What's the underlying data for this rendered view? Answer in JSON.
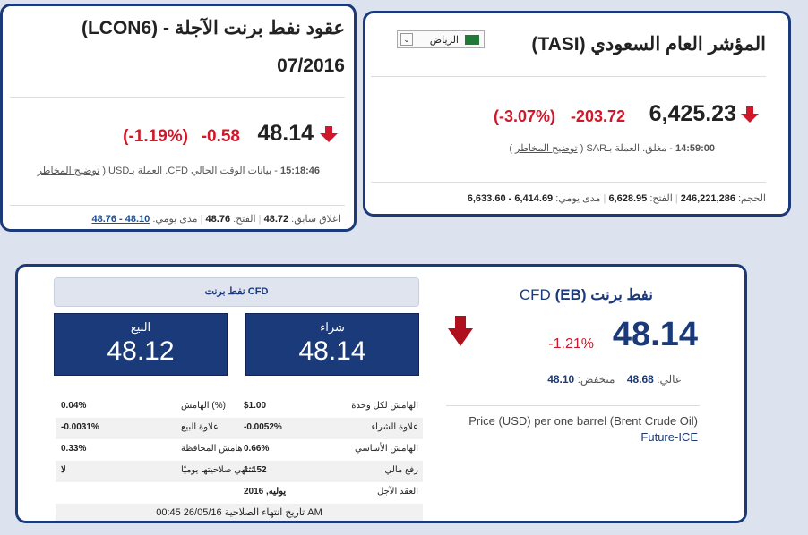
{
  "left": {
    "title_line1": "عقود نفط برنت الآجلة  -  (LCON6)",
    "title_line2": "07/2016",
    "price": "48.14",
    "change": "-0.58",
    "change_pct": "(-1.19%)",
    "time": "15:18:46",
    "status_text": "- بيانات الوقت الحالي CFD. العملة بـUSD (",
    "risk_link": "توضيح المخاطر",
    "prev_close_label": "اغلاق سابق:",
    "prev_close": "48.72",
    "open_label": "الفتح:",
    "open": "48.76",
    "day_range_label": "مدى يومي:",
    "day_range": "48.10 - 48.76"
  },
  "right": {
    "title": "المؤشر العام السعودي (TASI)",
    "city_select": "الرياض",
    "price": "6,425.23",
    "change": "-203.72",
    "change_pct": "(-3.07%)",
    "time": "14:59:00",
    "status_text": "- مغلق. العملة بـSAR (",
    "risk_link": "توضيح المخاطر",
    "close_paren": ")",
    "volume_label": "الحجم:",
    "volume": "246,221,286",
    "open_label": "الفتح:",
    "open": "6,628.95",
    "day_range_label": "مدى يومي:",
    "day_range": "6,414.69 - 6,633.60"
  },
  "bottom": {
    "name": "نفط برنت",
    "code": "(EB)",
    "cfd": "CFD",
    "price": "48.14",
    "change_pct": "-1.21%",
    "high_label": "عالي:",
    "high": "48.68",
    "low_label": "منخفض:",
    "low": "48.10",
    "description": "Price (USD) per one barrel (Brent Crude Oil)",
    "description2": "Future-ICE",
    "trade_header": "نفط برنت CFD",
    "buy_label": "شراء",
    "buy_price": "48.14",
    "sell_label": "البيع",
    "sell_price": "48.12",
    "rows": [
      {
        "rlabel": "الهامش لكل وحدة",
        "rvalue": "$1.00",
        "llabel": "الهامش (%)",
        "lvalue": "0.04%"
      },
      {
        "rlabel": "علاوة الشراء",
        "rvalue": "-0.0052%",
        "llabel": "علاوة البيع",
        "lvalue": "-0.0031%"
      },
      {
        "rlabel": "الهامش الأساسي",
        "rvalue": "0.66%",
        "llabel": "هامش المحافظة",
        "lvalue": "0.33%"
      },
      {
        "rlabel": "رفع مالي",
        "rvalue": "1:152",
        "llabel": "تنتهي صلاحيتها يوميًا",
        "lvalue": "لا"
      },
      {
        "rlabel": "العقد الآجل",
        "rvalue": "يوليه, 2016",
        "llabel": "",
        "lvalue": ""
      }
    ],
    "expiry": "00:45 26/05/16 تاريخ انتهاء الصلاحية AM"
  }
}
